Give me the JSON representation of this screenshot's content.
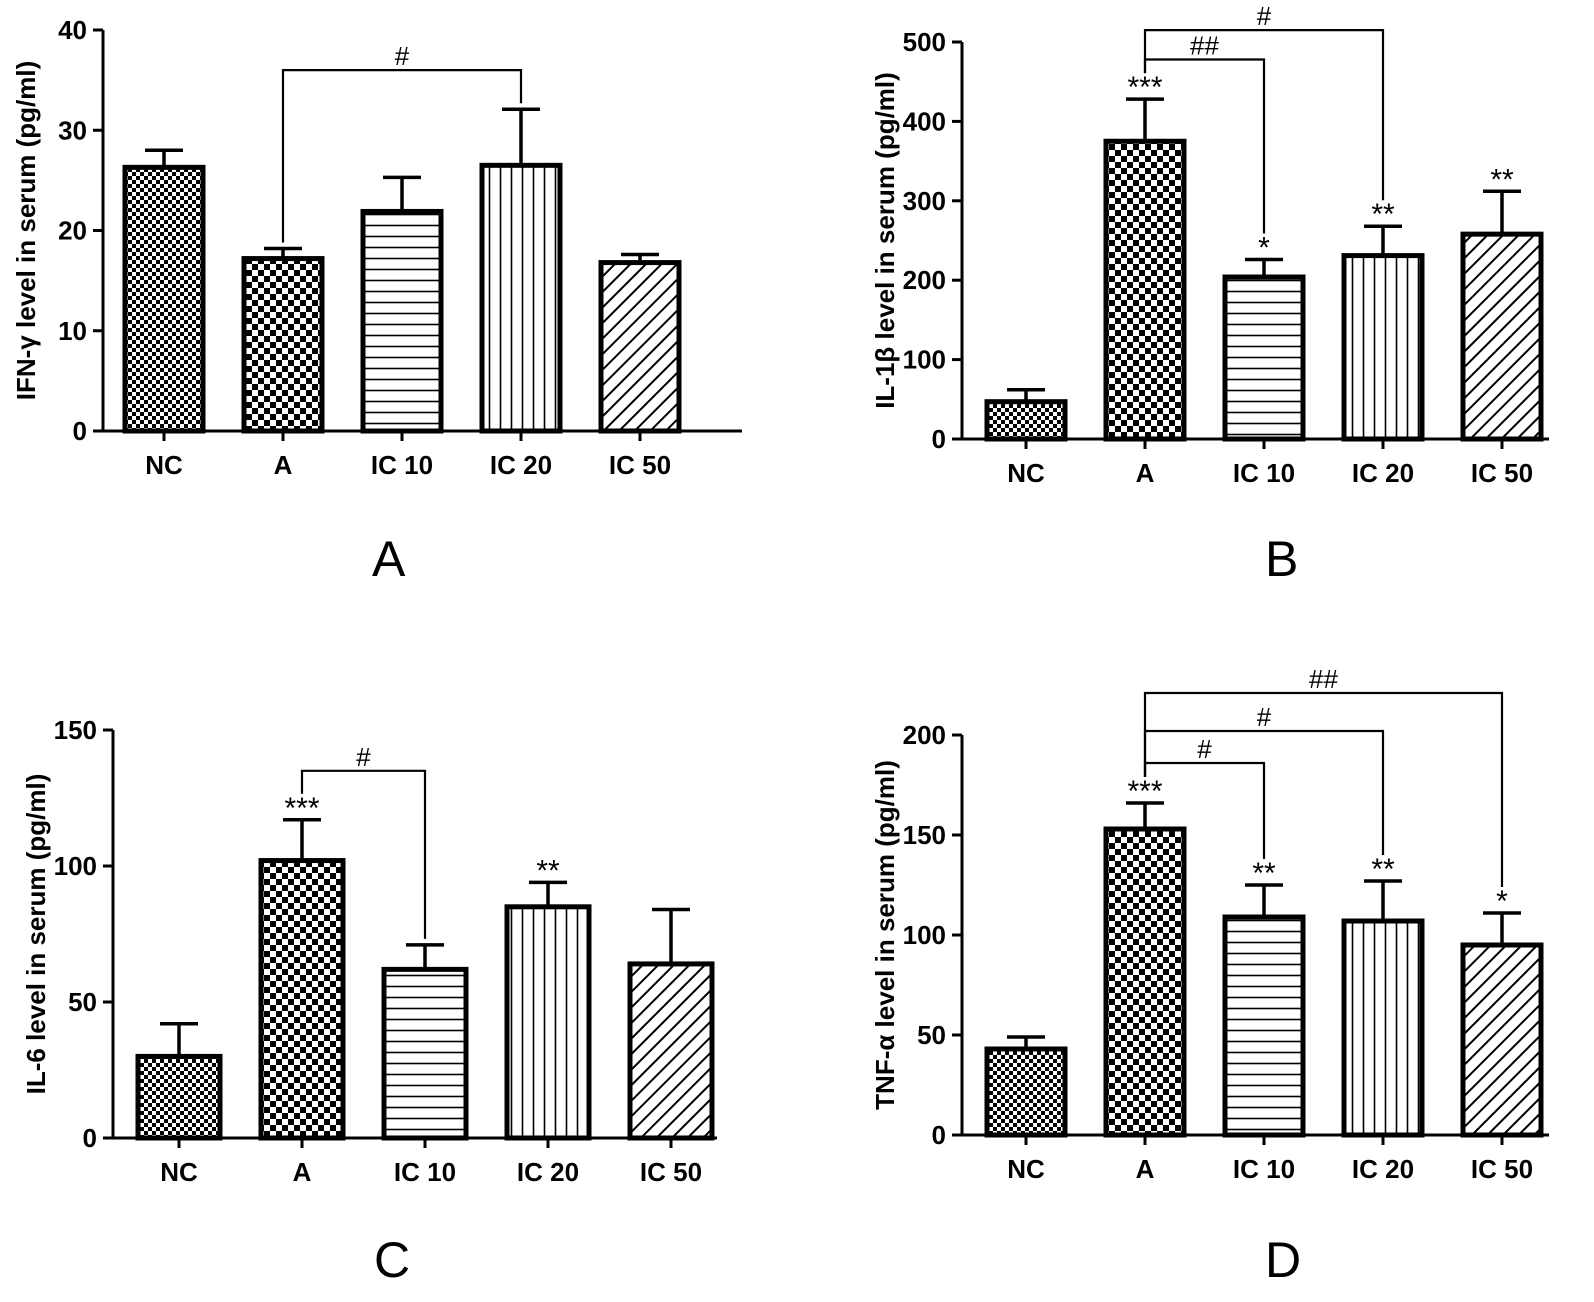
{
  "chart_data": [
    {
      "panel": "A",
      "type": "bar",
      "ylabel": "IFN-γ level in serum (pg/ml)",
      "ylim": [
        0,
        40
      ],
      "yticks": [
        0,
        10,
        20,
        30,
        40
      ],
      "categories": [
        "NC",
        "A",
        "IC 10",
        "IC 20",
        "IC 50"
      ],
      "values": [
        26.3,
        17.2,
        21.9,
        26.5,
        16.8
      ],
      "errors": [
        1.7,
        1.0,
        3.4,
        5.6,
        0.8
      ],
      "patterns": [
        "checker-fine",
        "checker",
        "hlines",
        "vlines",
        "diag"
      ],
      "significance": [
        "",
        "",
        "",
        "",
        ""
      ],
      "brackets": [
        {
          "from": 1,
          "to": 3,
          "label": "#",
          "level": 36
        }
      ]
    },
    {
      "panel": "B",
      "type": "bar",
      "ylabel": "IL-1β level in serum (pg/ml)",
      "ylim": [
        0,
        500
      ],
      "yticks": [
        0,
        100,
        200,
        300,
        400,
        500
      ],
      "categories": [
        "NC",
        "A",
        "IC 10",
        "IC 20",
        "IC 50"
      ],
      "values": [
        47,
        375,
        204,
        231,
        258
      ],
      "errors": [
        15,
        53,
        22,
        37,
        54
      ],
      "patterns": [
        "checker-fine",
        "checker",
        "hlines",
        "vlines",
        "diag"
      ],
      "significance": [
        "",
        "***",
        "*",
        "**",
        "**"
      ],
      "brackets": [
        {
          "from": 1,
          "to": 3,
          "label": "#",
          "level": 515
        },
        {
          "from": 1,
          "to": 2,
          "label": "##",
          "level": 478
        }
      ]
    },
    {
      "panel": "C",
      "type": "bar",
      "ylabel": "IL-6 level in serum (pg/ml)",
      "ylim": [
        0,
        150
      ],
      "yticks": [
        0,
        50,
        100,
        150
      ],
      "categories": [
        "NC",
        "A",
        "IC 10",
        "IC 20",
        "IC 50"
      ],
      "values": [
        30,
        102,
        62,
        85,
        64
      ],
      "errors": [
        12,
        15,
        9,
        9,
        20
      ],
      "patterns": [
        "checker-fine",
        "checker",
        "hlines",
        "vlines",
        "diag"
      ],
      "significance": [
        "",
        "***",
        "",
        "**",
        ""
      ],
      "brackets": [
        {
          "from": 1,
          "to": 2,
          "label": "#",
          "level": 135
        }
      ]
    },
    {
      "panel": "D",
      "type": "bar",
      "ylabel": "TNF-α level in serum (pg/ml)",
      "ylim": [
        0,
        200
      ],
      "yticks": [
        0,
        50,
        100,
        150,
        200
      ],
      "categories": [
        "NC",
        "A",
        "IC 10",
        "IC 20",
        "IC 50"
      ],
      "values": [
        43,
        153,
        109,
        107,
        95
      ],
      "errors": [
        6,
        13,
        16,
        20,
        16
      ],
      "patterns": [
        "checker-fine",
        "checker",
        "hlines",
        "vlines",
        "diag"
      ],
      "significance": [
        "",
        "***",
        "**",
        "**",
        "*"
      ],
      "brackets": [
        {
          "from": 1,
          "to": 4,
          "label": "##",
          "level": 221
        },
        {
          "from": 1,
          "to": 3,
          "label": "#",
          "level": 202
        },
        {
          "from": 1,
          "to": 2,
          "label": "#",
          "level": 186
        }
      ]
    }
  ]
}
